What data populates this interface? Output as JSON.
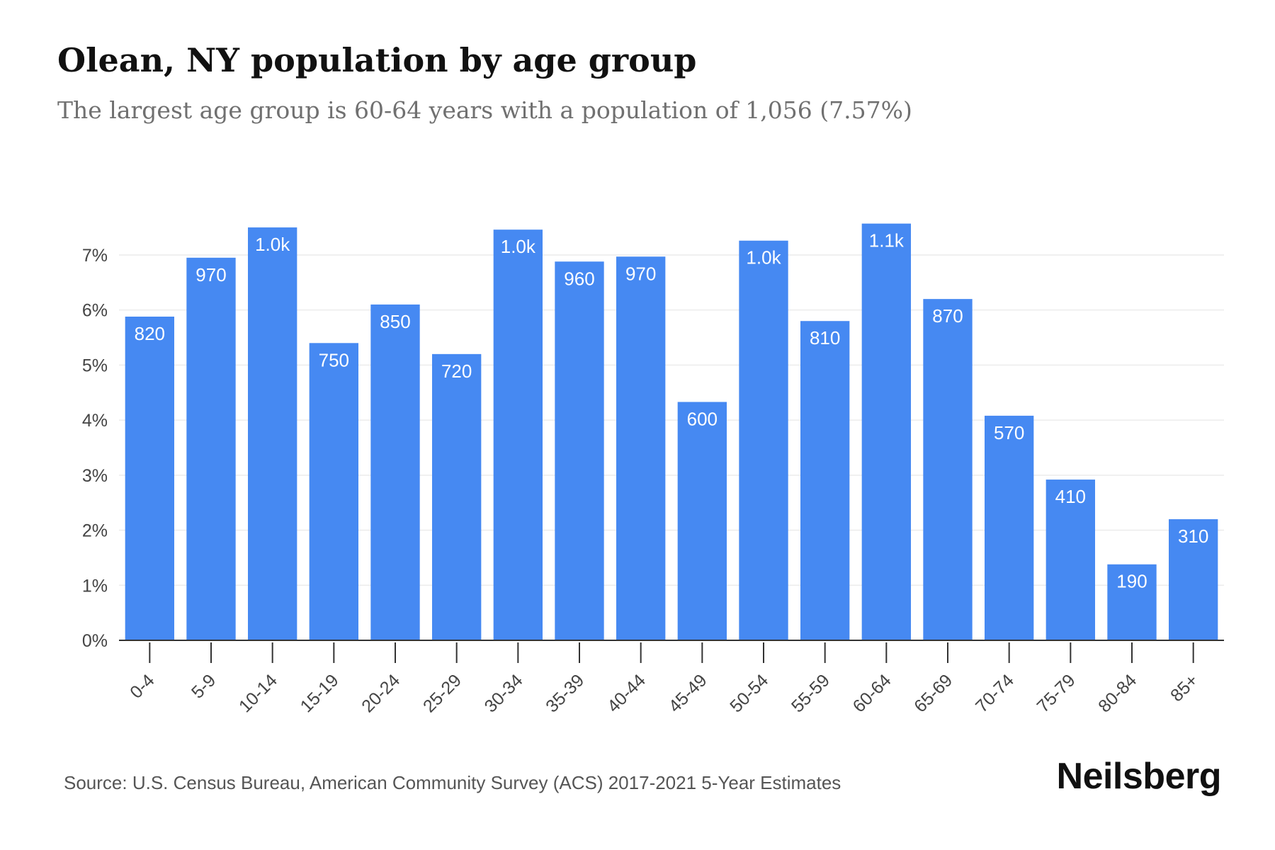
{
  "header": {
    "title": "Olean, NY population by age group",
    "subtitle": "The largest age group is 60-64 years with a population of 1,056 (7.57%)"
  },
  "footer": {
    "source": "Source: U.S. Census Bureau, American Community Survey (ACS) 2017-2021 5-Year Estimates",
    "brand": "Neilsberg"
  },
  "colors": {
    "bar": "#4689F2",
    "bar_label": "#ffffff",
    "grid": "#ececec",
    "axis": "#333333",
    "tick_text": "#444444"
  },
  "chart_data": {
    "type": "bar",
    "categories": [
      "0-4",
      "5-9",
      "10-14",
      "15-19",
      "20-24",
      "25-29",
      "30-34",
      "35-39",
      "40-44",
      "45-49",
      "50-54",
      "55-59",
      "60-64",
      "65-69",
      "70-74",
      "75-79",
      "80-84",
      "85+"
    ],
    "values": [
      5.88,
      6.95,
      7.5,
      5.4,
      6.1,
      5.2,
      7.46,
      6.88,
      6.97,
      4.33,
      7.26,
      5.8,
      7.57,
      6.2,
      4.08,
      2.92,
      1.38,
      2.2
    ],
    "data_labels": [
      "820",
      "970",
      "1.0k",
      "750",
      "850",
      "720",
      "1.0k",
      "960",
      "970",
      "600",
      "1.0k",
      "810",
      "1.1k",
      "870",
      "570",
      "410",
      "190",
      "310"
    ],
    "y_ticks": [
      0,
      1,
      2,
      3,
      4,
      5,
      6,
      7
    ],
    "y_tick_labels": [
      "0%",
      "1%",
      "2%",
      "3%",
      "4%",
      "5%",
      "6%",
      "7%"
    ],
    "ylim": [
      0,
      7.9
    ],
    "grid": true,
    "xlabel": "",
    "ylabel": ""
  }
}
